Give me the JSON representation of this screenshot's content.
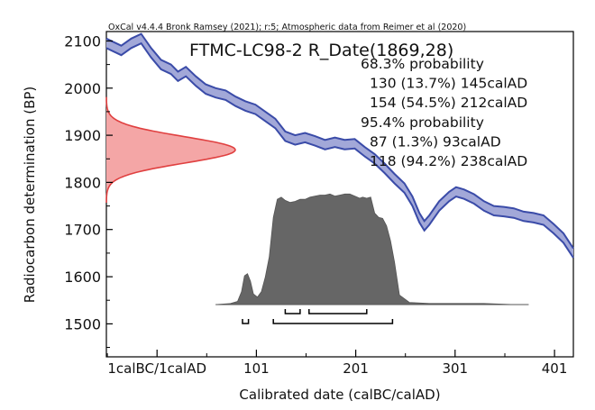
{
  "chart_data": {
    "type": "area",
    "header": "OxCal v4.4.4 Bronk Ramsey (2021); r:5; Atmospheric data from Reimer et al (2020)",
    "title": "FTMC-LC98-2 R_Date(1869,28)",
    "xlabel": "Calibrated date (calBC/calAD)",
    "ylabel": "Radiocarbon determination (BP)",
    "xlim": [
      -50,
      420
    ],
    "ylim": [
      1430,
      2120
    ],
    "x_ticks": [
      {
        "value": 1,
        "label": "1calBC/1calAD"
      },
      {
        "value": 101,
        "label": "101"
      },
      {
        "value": 201,
        "label": "201"
      },
      {
        "value": 301,
        "label": "301"
      },
      {
        "value": 401,
        "label": "401"
      }
    ],
    "y_ticks": [
      1500,
      1600,
      1700,
      1800,
      1900,
      2000,
      2100
    ],
    "annotations": [
      "68.3% probability",
      "130 (13.7%) 145calAD",
      "154 (54.5%) 212calAD",
      "95.4% probability",
      "87 (1.3%) 93calAD",
      "118 (94.2%) 238calAD"
    ],
    "ranges_68": [
      [
        130,
        145
      ],
      [
        154,
        212
      ]
    ],
    "ranges_95": [
      [
        87,
        93
      ],
      [
        118,
        238
      ]
    ],
    "calibration_curve": {
      "x": [
        -50,
        -35,
        -25,
        -15,
        -5,
        5,
        15,
        22,
        30,
        40,
        50,
        60,
        70,
        80,
        90,
        100,
        110,
        120,
        130,
        140,
        150,
        160,
        170,
        180,
        190,
        200,
        210,
        220,
        230,
        240,
        250,
        258,
        265,
        270,
        275,
        285,
        295,
        302,
        310,
        320,
        330,
        340,
        350,
        360,
        370,
        380,
        390,
        400,
        410,
        420
      ],
      "y": [
        2095,
        2080,
        2095,
        2105,
        2075,
        2050,
        2040,
        2025,
        2035,
        2015,
        1998,
        1990,
        1985,
        1972,
        1962,
        1955,
        1940,
        1925,
        1898,
        1890,
        1895,
        1888,
        1880,
        1885,
        1880,
        1882,
        1865,
        1850,
        1830,
        1808,
        1788,
        1760,
        1725,
        1708,
        1720,
        1750,
        1770,
        1780,
        1775,
        1765,
        1750,
        1740,
        1738,
        1735,
        1728,
        1725,
        1720,
        1702,
        1682,
        1650
      ],
      "half_width": 10
    },
    "radiocarbon_distribution": {
      "mean_bp": 1869,
      "sigma_bp": 28,
      "color": "#e04040",
      "fill": "#f4a6a6"
    },
    "calibrated_distribution": {
      "x": [
        60,
        75,
        82,
        86,
        89,
        92,
        95,
        98,
        102,
        106,
        110,
        114,
        118,
        122,
        126,
        130,
        135,
        140,
        145,
        150,
        155,
        160,
        165,
        170,
        175,
        180,
        185,
        190,
        195,
        200,
        205,
        208,
        212,
        216,
        220,
        224,
        228,
        232,
        236,
        240,
        245,
        255,
        275,
        300,
        330,
        360,
        375
      ],
      "y": [
        0,
        0.01,
        0.03,
        0.12,
        0.27,
        0.29,
        0.22,
        0.1,
        0.07,
        0.12,
        0.26,
        0.45,
        0.82,
        0.99,
        1.01,
        0.98,
        0.96,
        0.97,
        0.99,
        0.99,
        1.01,
        1.02,
        1.03,
        1.03,
        1.04,
        1.02,
        1.03,
        1.04,
        1.04,
        1.02,
        1.0,
        1.01,
        1.0,
        1.01,
        0.86,
        0.82,
        0.81,
        0.74,
        0.6,
        0.4,
        0.09,
        0.02,
        0.01,
        0.01,
        0.01,
        0.0,
        0.0
      ],
      "fill": "#666666"
    },
    "colors": {
      "curve_edge": "#3a4ba8",
      "curve_fill": "#a2a8d8",
      "axis": "#000000"
    }
  }
}
